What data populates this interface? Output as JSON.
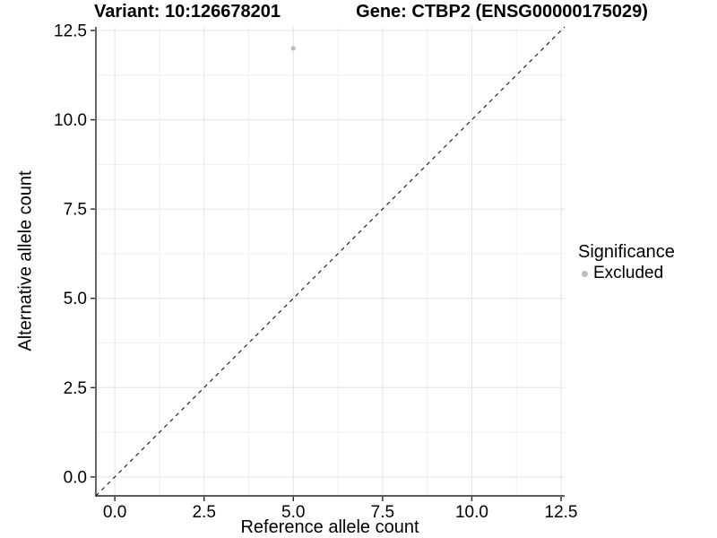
{
  "chart_data": {
    "type": "scatter",
    "title_left": "Variant: 10:126678201",
    "title_right": "Gene: CTBP2 (ENSG00000175029)",
    "xlabel": "Reference allele count",
    "ylabel": "Alternative allele count",
    "xlim": [
      -0.53,
      12.6
    ],
    "ylim": [
      -0.53,
      12.6
    ],
    "x_ticks": [
      0.0,
      2.5,
      5.0,
      7.5,
      10.0,
      12.5
    ],
    "y_ticks": [
      0.0,
      2.5,
      5.0,
      7.5,
      10.0,
      12.5
    ],
    "x_tick_labels": [
      "0.0",
      "2.5",
      "5.0",
      "7.5",
      "10.0",
      "12.5"
    ],
    "y_tick_labels": [
      "0.0",
      "2.5",
      "5.0",
      "7.5",
      "10.0",
      "12.5"
    ],
    "minor_grid_step": 1.25,
    "grid": true,
    "series": [
      {
        "name": "Excluded",
        "color": "#bebebe",
        "points": [
          {
            "x": 5,
            "y": 12
          }
        ]
      }
    ],
    "reference_line": {
      "kind": "abline",
      "slope": 1,
      "intercept": 0,
      "style": "dashed",
      "color": "#111111"
    },
    "legend": {
      "position": "right",
      "title": "Significance",
      "entries": [
        {
          "label": "Excluded",
          "color": "#bebebe"
        }
      ]
    }
  },
  "colors": {
    "background": "#ffffff",
    "grid_major": "#e4e4e4",
    "grid_minor": "#f1f1f1",
    "axis_line": "#262626",
    "tick_mark": "#262626",
    "tick_label": "#000000",
    "point": "#bebebe"
  }
}
